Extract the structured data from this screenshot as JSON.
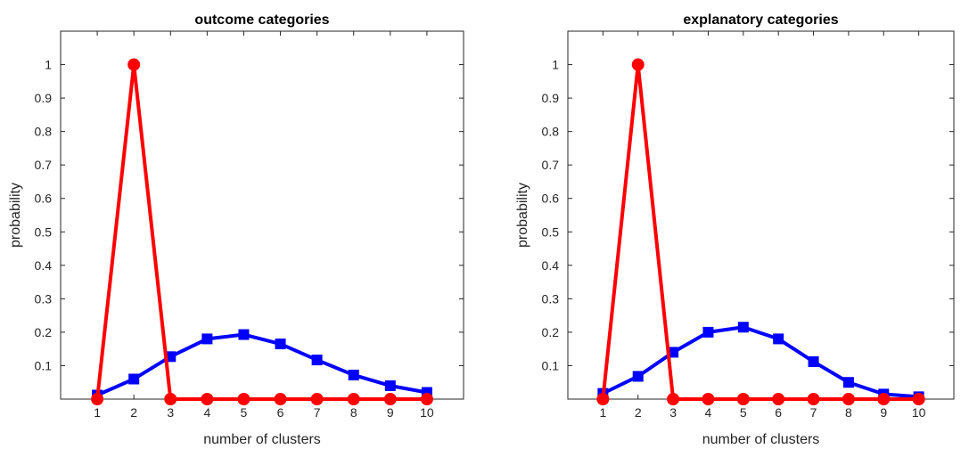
{
  "chart_data": [
    {
      "type": "line",
      "title": "outcome categories",
      "xlabel": "number of clusters",
      "ylabel": "probability",
      "x": [
        1,
        2,
        3,
        4,
        5,
        6,
        7,
        8,
        9,
        10
      ],
      "xlim": [
        0,
        11
      ],
      "ylim": [
        0,
        1.1
      ],
      "xticks": [
        "1",
        "2",
        "3",
        "4",
        "5",
        "6",
        "7",
        "8",
        "9",
        "10"
      ],
      "yticks": [
        "0.1",
        "0.2",
        "0.3",
        "0.4",
        "0.5",
        "0.6",
        "0.7",
        "0.8",
        "0.9",
        "1"
      ],
      "grid": false,
      "series": [
        {
          "color": "#0000ff",
          "marker": "square",
          "values": [
            0.012,
            0.06,
            0.127,
            0.18,
            0.193,
            0.165,
            0.117,
            0.072,
            0.04,
            0.02
          ]
        },
        {
          "color": "#ff0000",
          "marker": "circle",
          "values": [
            0.0,
            1.0,
            0.0,
            0.0,
            0.0,
            0.0,
            0.0,
            0.0,
            0.0,
            0.0
          ]
        }
      ]
    },
    {
      "type": "line",
      "title": "explanatory categories",
      "xlabel": "number of clusters",
      "ylabel": "probability",
      "x": [
        1,
        2,
        3,
        4,
        5,
        6,
        7,
        8,
        9,
        10
      ],
      "xlim": [
        0,
        11
      ],
      "ylim": [
        0,
        1.1
      ],
      "xticks": [
        "1",
        "2",
        "3",
        "4",
        "5",
        "6",
        "7",
        "8",
        "9",
        "10"
      ],
      "yticks": [
        "0.1",
        "0.2",
        "0.3",
        "0.4",
        "0.5",
        "0.6",
        "0.7",
        "0.8",
        "0.9",
        "1"
      ],
      "grid": false,
      "series": [
        {
          "color": "#0000ff",
          "marker": "square",
          "values": [
            0.017,
            0.068,
            0.14,
            0.2,
            0.215,
            0.18,
            0.112,
            0.05,
            0.015,
            0.007
          ]
        },
        {
          "color": "#ff0000",
          "marker": "circle",
          "values": [
            0.0,
            1.0,
            0.0,
            0.0,
            0.0,
            0.0,
            0.0,
            0.0,
            0.0,
            0.0
          ]
        }
      ]
    }
  ]
}
